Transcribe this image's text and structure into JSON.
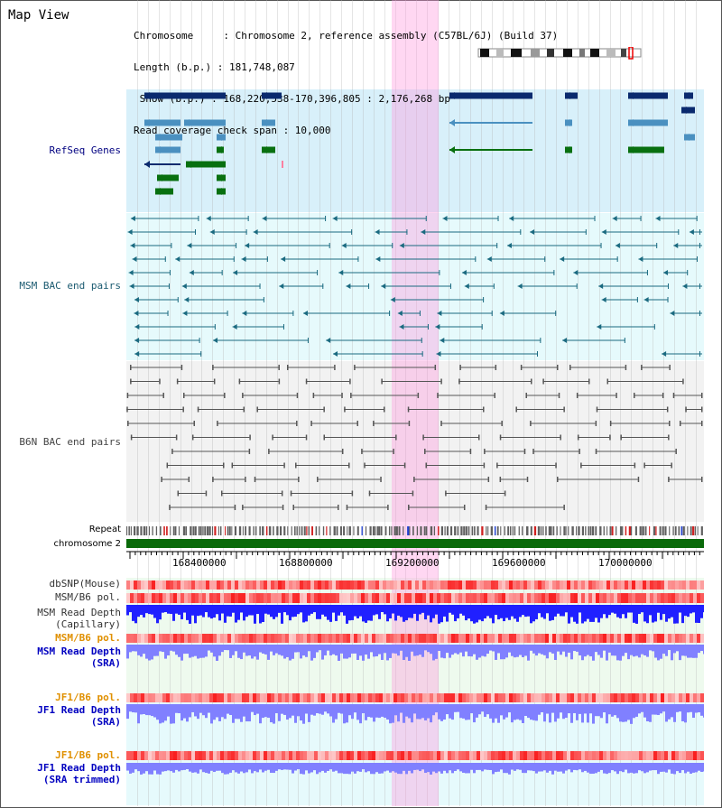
{
  "view_title": "Map View",
  "info": {
    "line1": "Chromosome     : Chromosome 2, reference assembly (C57BL/6J) (Build 37)",
    "line2": "Length (b.p.) : 181,748,087",
    "line3": " Show (b.p.) : 168,220,538-170,396,805 : 2,176,268 bp",
    "line4": "Read coverage check span : 10,000"
  },
  "tracks": {
    "refseq": "RefSeq Genes",
    "msm_bac": "MSM BAC end pairs",
    "b6n_bac": "B6N BAC end pairs",
    "repeat": "Repeat",
    "chromosome": "chromosome 2",
    "dbsnp": "dbSNP(Mouse)",
    "msm_pol1": "MSM/B6 pol.",
    "msm_depth_cap": "MSM Read Depth\n(Capillary)",
    "msm_pol2": "MSM/B6 pol.",
    "msm_depth_sra": "MSM Read Depth\n(SRA)",
    "jf1_pol1": "JF1/B6 pol.",
    "jf1_depth_sra": "JF1 Read Depth\n(SRA)",
    "jf1_pol2": "JF1/B6 pol.",
    "jf1_depth_trim": "JF1 Read Depth\n(SRA trimmed)"
  },
  "axis_ticks": [
    "168400000",
    "168800000",
    "169200000",
    "169600000",
    "170000000"
  ],
  "colors": {
    "refseq_dark": "#0a2a6e",
    "refseq_light": "#4a90c0",
    "refseq_green": "#087010",
    "msm_bac": "#1a6a80",
    "b6n_bac": "#555555",
    "depth_blue": "#2020ff",
    "depth_light": "#8080ff",
    "snp_red": "#ff5050",
    "highlight": "#ffa0dc"
  }
}
